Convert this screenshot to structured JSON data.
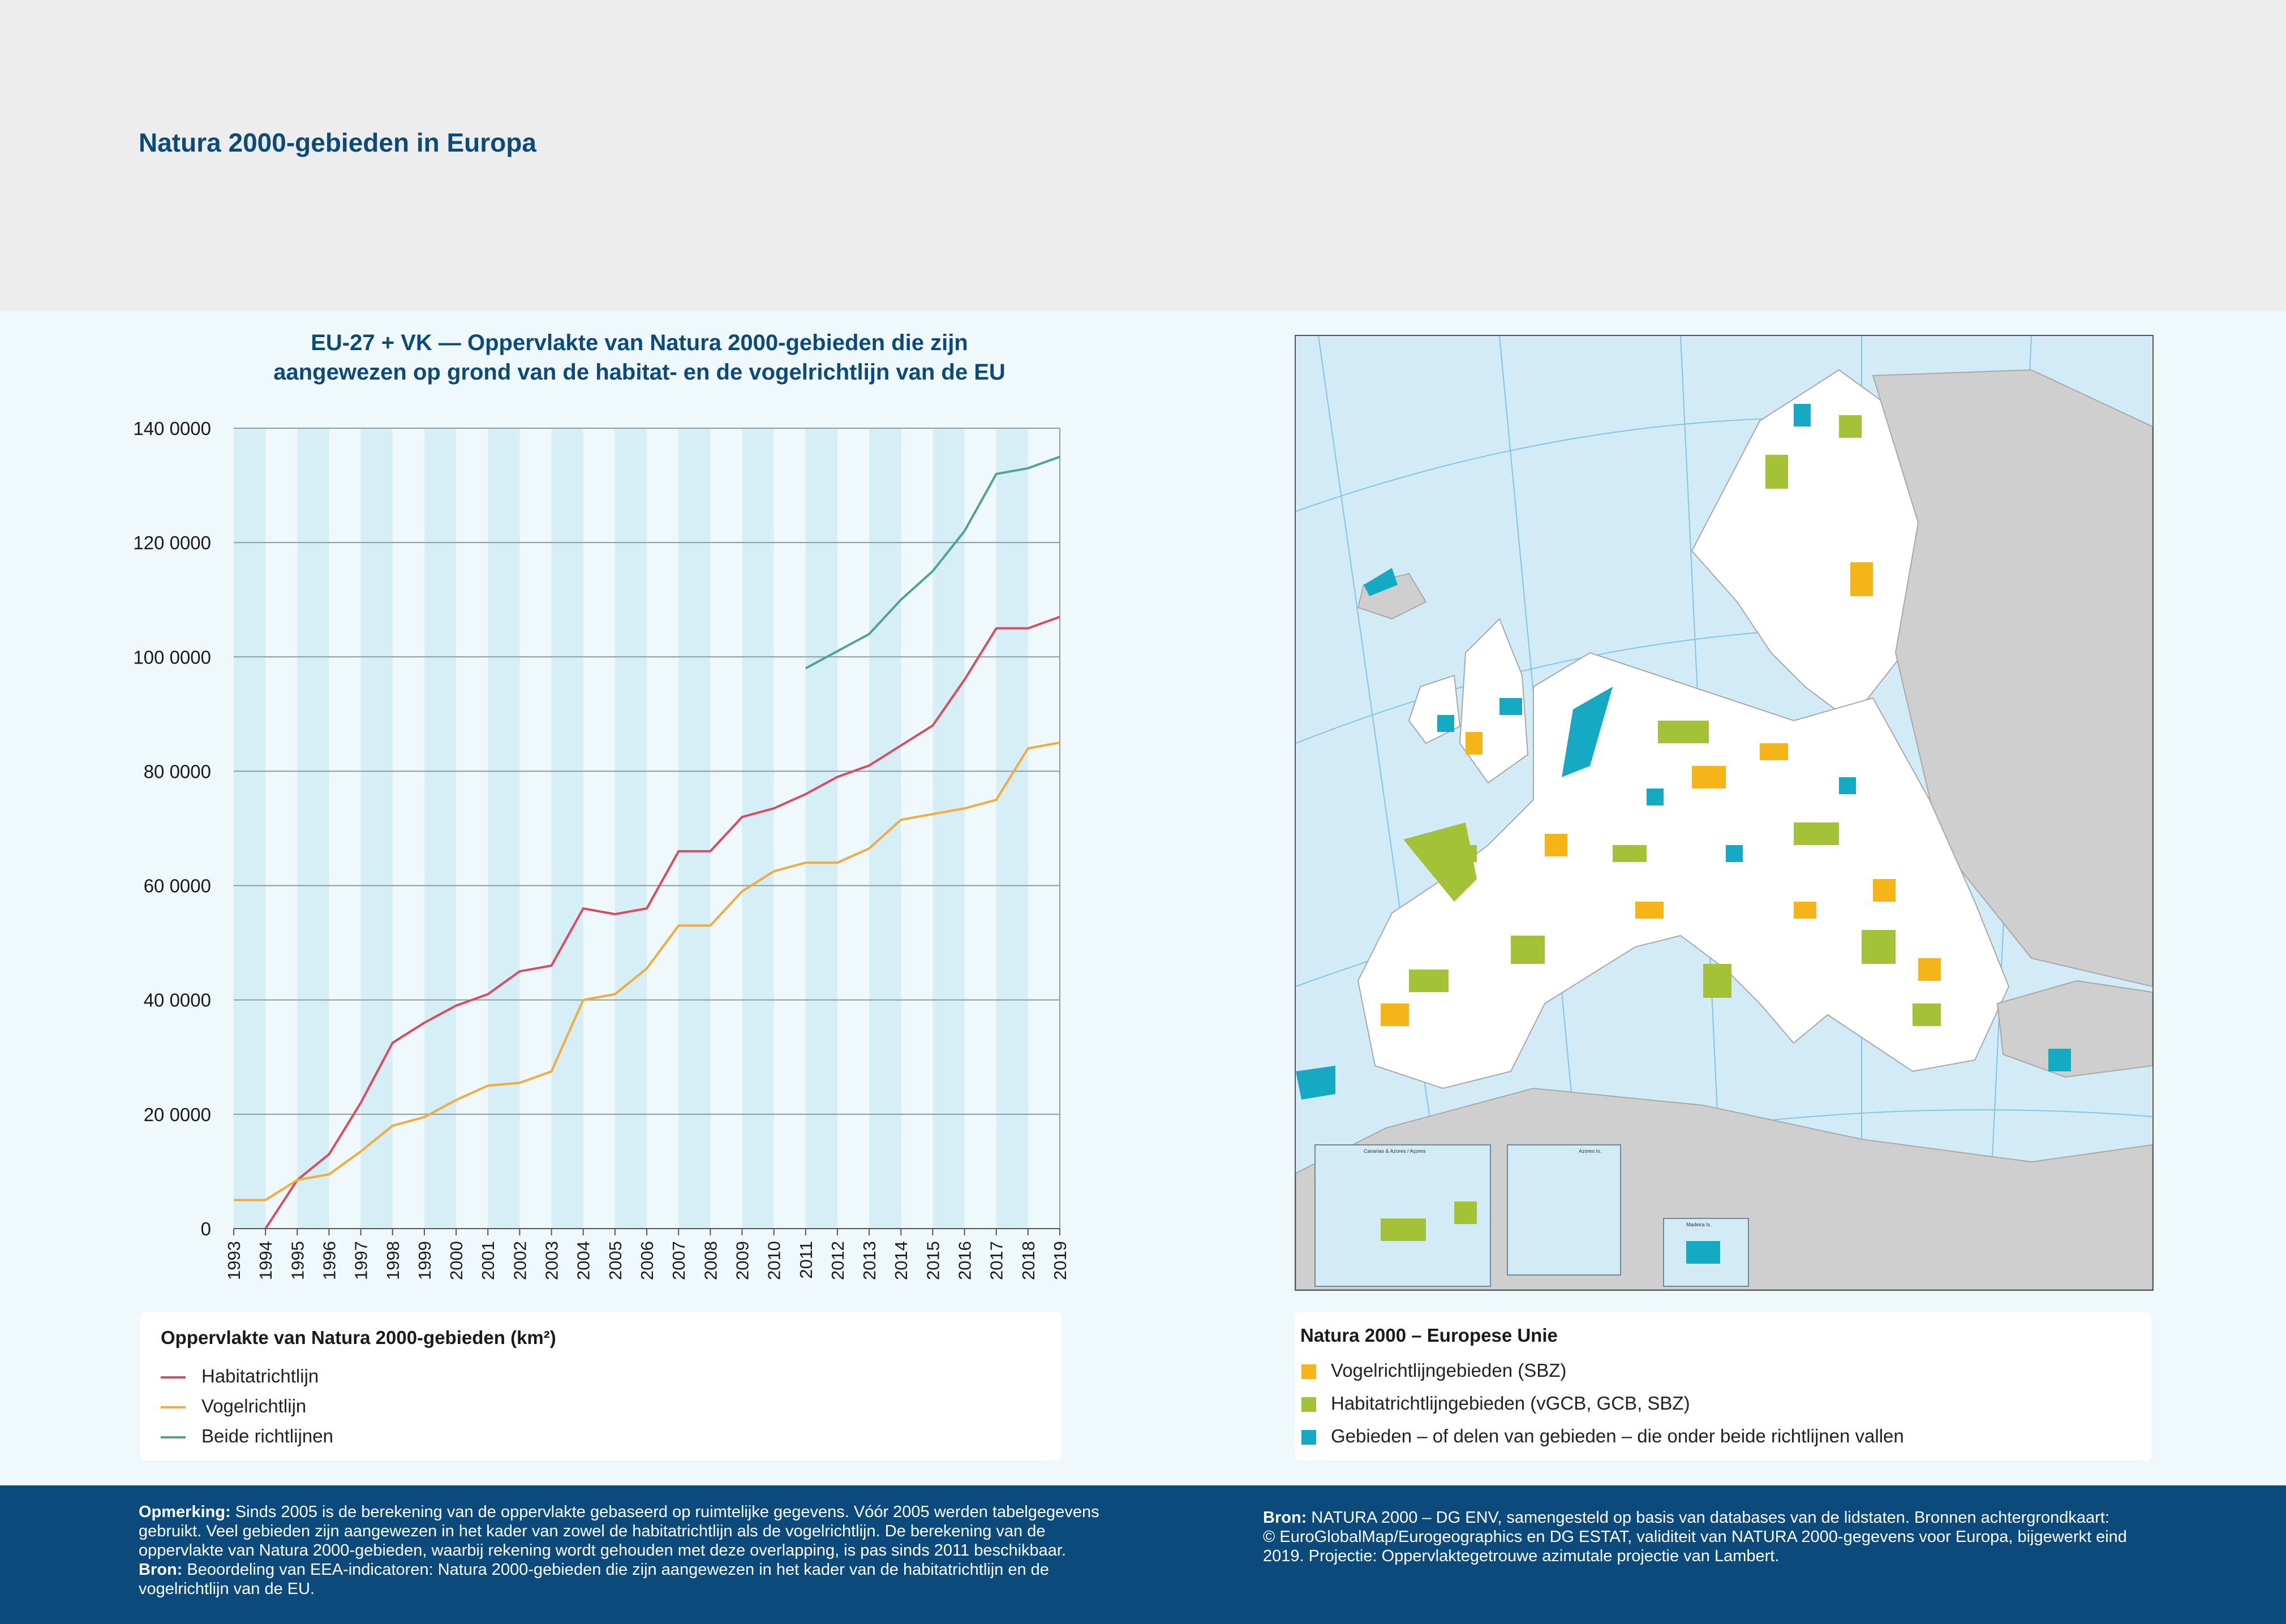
{
  "page": {
    "title": "Natura 2000-gebieden in Europa"
  },
  "chart_title": {
    "line1": "EU-27 + VK — Oppervlakte van Natura 2000-gebieden die zijn",
    "line2": "aangewezen op grond van de habitat- en de vogelrichtlijn van de EU"
  },
  "chart_data": {
    "type": "line",
    "x": [
      1993,
      1994,
      1995,
      1996,
      1997,
      1998,
      1999,
      2000,
      2001,
      2002,
      2003,
      2004,
      2005,
      2006,
      2007,
      2008,
      2009,
      2010,
      2011,
      2012,
      2013,
      2014,
      2015,
      2016,
      2017,
      2018,
      2019
    ],
    "y_ticks": [
      0,
      20000,
      40000,
      60000,
      80000,
      100000,
      120000,
      140000
    ],
    "y_tick_labels": [
      "0",
      "20 0000",
      "40 0000",
      "60 0000",
      "80 0000",
      "100 0000",
      "120 0000",
      "140 0000"
    ],
    "ylim": [
      0,
      140000
    ],
    "series": [
      {
        "name": "Habitatrichtlijn",
        "color": "#dd4a5e",
        "values": [
          null,
          0,
          8500,
          13000,
          22000,
          32500,
          36000,
          39000,
          41000,
          45000,
          46000,
          56000,
          55000,
          56000,
          66000,
          66000,
          72000,
          73500,
          76000,
          79000,
          81000,
          84500,
          88000,
          96000,
          105000,
          105000,
          107000
        ]
      },
      {
        "name": "Vogelrichtlijn",
        "color": "#f2ab3c",
        "values": [
          5000,
          5000,
          8500,
          9500,
          13500,
          18000,
          19500,
          22500,
          25000,
          25500,
          27500,
          40000,
          41000,
          45500,
          53000,
          53000,
          59000,
          62500,
          64000,
          64000,
          66500,
          71500,
          72500,
          73500,
          75000,
          84000,
          85000
        ]
      },
      {
        "name": "Beide richtlijnen",
        "color": "#4fa38f",
        "values": [
          null,
          null,
          null,
          null,
          null,
          null,
          null,
          null,
          null,
          null,
          null,
          null,
          null,
          null,
          null,
          null,
          null,
          null,
          98000,
          101000,
          104000,
          110000,
          115000,
          122000,
          132000,
          133000,
          135000
        ]
      }
    ],
    "legend_title": "Oppervlakte van Natura 2000-gebieden (km²)",
    "grid": true
  },
  "map": {
    "legend_title": "Natura 2000 – Europese Unie",
    "items": [
      {
        "label": "Vogelrichtlijngebieden (SBZ)",
        "color": "#f5b418"
      },
      {
        "label": "Habitatrichtlijngebieden (vGCB, GCB, SBZ)",
        "color": "#a3c238"
      },
      {
        "label": "Gebieden – of delen van gebieden – die onder beide richtlijnen vallen",
        "color": "#16a9c4"
      }
    ],
    "inset_labels": [
      "Canarias & Azores / Açores",
      "Azores Is.",
      "Madeira Is."
    ]
  },
  "footer": {
    "left_label1": "Opmerking:",
    "left_text1": " Sinds 2005 is de berekening van de oppervlakte gebaseerd op ruimtelijke gegevens. Vóór 2005 werden tabelgegevens",
    "left_line2": "gebruikt. Veel gebieden zijn aangewezen in het kader van zowel de habitatrichtlijn als de vogelrichtlijn. De berekening van de",
    "left_line3": "oppervlakte van Natura 2000-gebieden, waarbij rekening wordt gehouden met deze overlapping, is pas sinds 2011 beschikbaar.",
    "left_label2": "Bron:",
    "left_text2": " Beoordeling van EEA-indicatoren: Natura 2000-gebieden die zijn aangewezen in het kader van de habitatrichtlijn en de",
    "left_line5": "vogelrichtlijn van de EU.",
    "right_label": "Bron:",
    "right_text1": " NATURA 2000 – DG ENV, samengesteld op basis van databases van de lidstaten. Bronnen achtergrondkaart:",
    "right_line2": "© EuroGlobalMap/Eurogeographics en DG ESTAT, validiteit van NATURA 2000-gegevens voor Europa, bijgewerkt eind",
    "right_line3": "2019. Projectie: Oppervlaktegetrouwe azimutale projectie van Lambert."
  }
}
